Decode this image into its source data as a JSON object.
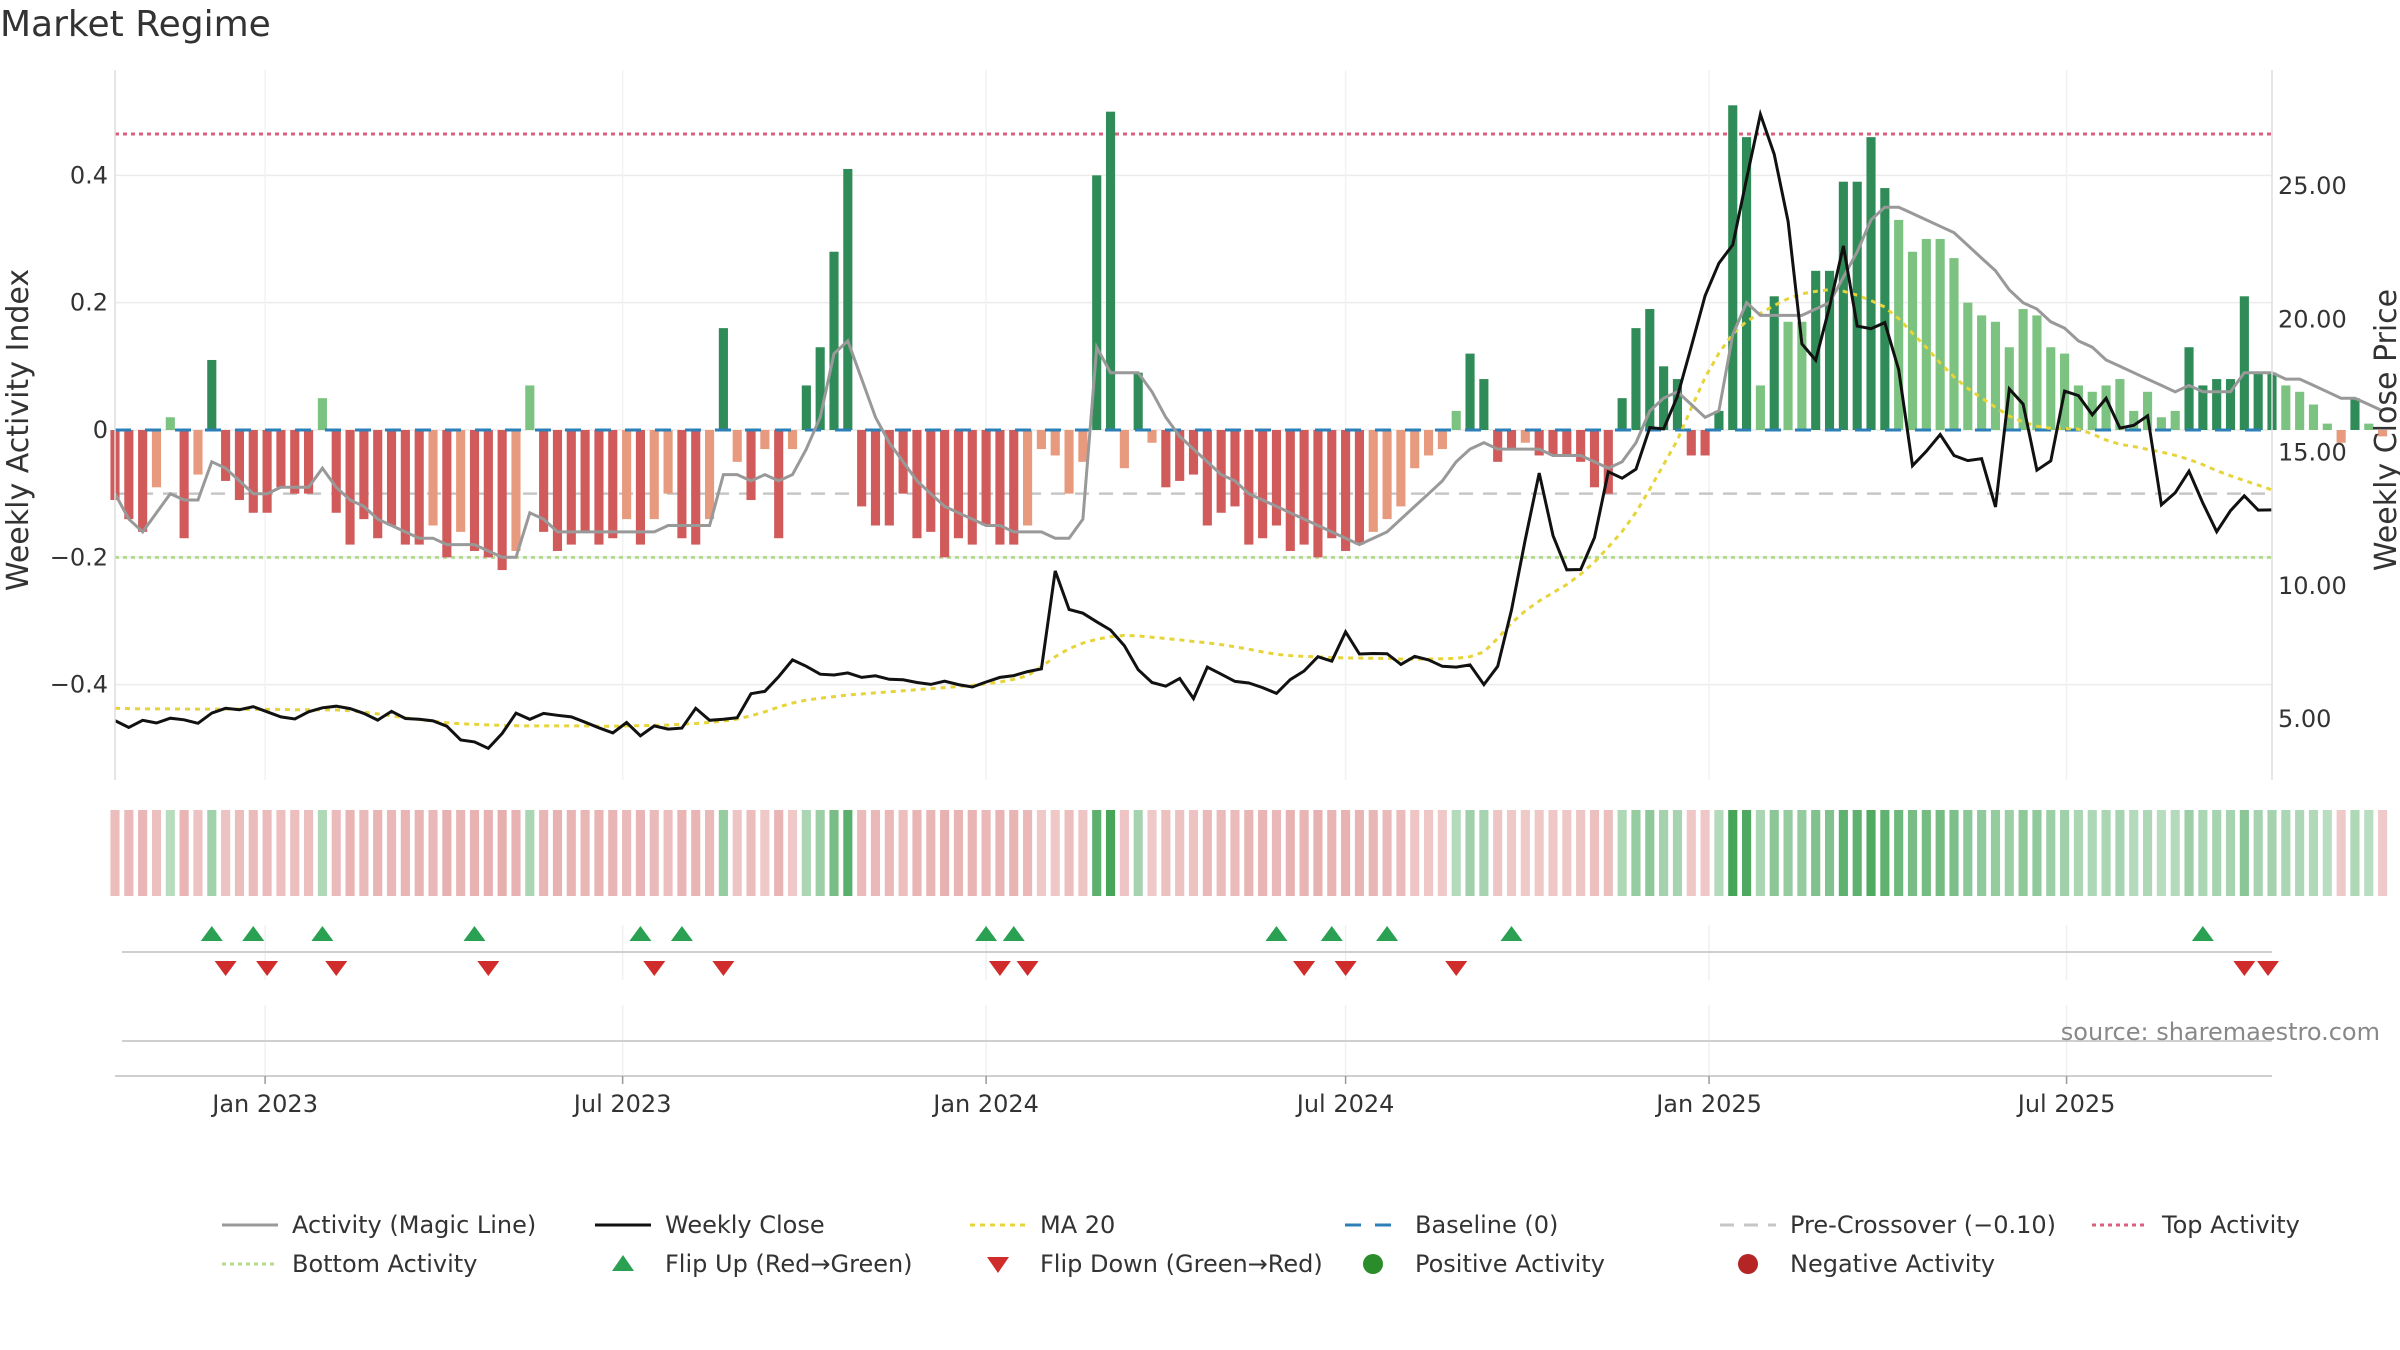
{
  "title": "Market Regime",
  "source": "source: sharemaestro.com",
  "colors": {
    "magic_line": "#999999",
    "close": "#111111",
    "ma20": "#e6d43a",
    "baseline": "#2d7fb8",
    "precross": "#c6c6c6",
    "top": "#d9617d",
    "bottom": "#b4db8e",
    "flip_up": "#2aa052",
    "flip_down": "#d12c2c",
    "pos_dot": "#2a8c2a",
    "neg_dot": "#b52525",
    "bar_strong_pos": "#2f8b57",
    "bar_weak_pos": "#7cc382",
    "bar_strong_neg": "#d15b5b",
    "bar_weak_neg": "#e89a7e"
  },
  "chart_data": {
    "type": "bar",
    "title": "Market Regime",
    "ylabel_left": "Weekly Activity Index",
    "ylabel_right": "Weekly Close Price",
    "ylim_left": [
      -0.5,
      0.55
    ],
    "ylim_right": [
      2.0,
      29.2
    ],
    "y_ticks_left": [
      0.4,
      0.2,
      0,
      -0.2,
      -0.4
    ],
    "y_tick_labels_left": [
      "0.4",
      "0.2",
      "0",
      "−0.2",
      "−0.4"
    ],
    "y_ticks_right": [
      25,
      20,
      15,
      10,
      5
    ],
    "y_tick_labels_right": [
      "25.00",
      "20.00",
      "15.00",
      "10.00",
      "5.00"
    ],
    "x_ticks": [
      "2023-01-01",
      "2023-07-01",
      "2024-01-01",
      "2024-07-01",
      "2025-01-01",
      "2025-07-01"
    ],
    "x_tick_labels": [
      "Jan 2023",
      "Jul 2023",
      "Jan 2024",
      "Jul 2024",
      "Jan 2025",
      "Jul 2025"
    ],
    "x_range": [
      "2022-10-17",
      "2025-10-13"
    ],
    "first_week": "2022-10-17",
    "week_interval_days": 7,
    "reference_lines": {
      "baseline": 0,
      "pre_crossover": -0.1,
      "top_activity": 0.465,
      "bottom_activity": -0.2
    },
    "activity": [
      -0.11,
      -0.14,
      -0.16,
      -0.09,
      0.02,
      -0.17,
      -0.07,
      0.11,
      -0.08,
      -0.11,
      -0.13,
      -0.13,
      -0.09,
      -0.1,
      -0.1,
      0.05,
      -0.13,
      -0.18,
      -0.14,
      -0.17,
      -0.15,
      -0.18,
      -0.18,
      -0.15,
      -0.2,
      -0.16,
      -0.19,
      -0.2,
      -0.22,
      -0.19,
      0.07,
      -0.16,
      -0.19,
      -0.18,
      -0.16,
      -0.18,
      -0.17,
      -0.14,
      -0.18,
      -0.14,
      -0.1,
      -0.17,
      -0.18,
      -0.14,
      0.16,
      -0.05,
      -0.11,
      -0.03,
      -0.17,
      -0.03,
      0.07,
      0.13,
      0.28,
      0.41,
      -0.12,
      -0.15,
      -0.15,
      -0.1,
      -0.17,
      -0.16,
      -0.2,
      -0.17,
      -0.18,
      -0.15,
      -0.18,
      -0.18,
      -0.15,
      -0.03,
      -0.04,
      -0.1,
      -0.05,
      0.4,
      0.5,
      -0.06,
      0.09,
      -0.02,
      -0.09,
      -0.08,
      -0.07,
      -0.15,
      -0.13,
      -0.12,
      -0.18,
      -0.17,
      -0.15,
      -0.19,
      -0.18,
      -0.2,
      -0.17,
      -0.19,
      -0.18,
      -0.16,
      -0.14,
      -0.12,
      -0.06,
      -0.04,
      -0.03,
      0.03,
      0.12,
      0.08,
      -0.05,
      -0.03,
      -0.02,
      -0.04,
      -0.04,
      -0.04,
      -0.05,
      -0.09,
      -0.1,
      0.05,
      0.16,
      0.19,
      0.1,
      0.08,
      -0.04,
      -0.04,
      0.03,
      0.51,
      0.46,
      0.07,
      0.21,
      0.17,
      0.17,
      0.25,
      0.25,
      0.39,
      0.39,
      0.46,
      0.38,
      0.33,
      0.28,
      0.3,
      0.3,
      0.27,
      0.2,
      0.18,
      0.17,
      0.13,
      0.19,
      0.18,
      0.13,
      0.12,
      0.07,
      0.06,
      0.07,
      0.08,
      0.03,
      0.06,
      0.02,
      0.03,
      0.13,
      0.07,
      0.08,
      0.08,
      0.21,
      0.09,
      0.09,
      0.07,
      0.06,
      0.04,
      0.01,
      -0.02,
      0.05,
      0.01,
      -0.01
    ],
    "magic_line": [
      -0.1,
      -0.14,
      -0.16,
      -0.13,
      -0.1,
      -0.11,
      -0.11,
      -0.05,
      -0.06,
      -0.08,
      -0.1,
      -0.1,
      -0.09,
      -0.09,
      -0.09,
      -0.06,
      -0.09,
      -0.11,
      -0.12,
      -0.14,
      -0.15,
      -0.16,
      -0.17,
      -0.17,
      -0.18,
      -0.18,
      -0.18,
      -0.19,
      -0.2,
      -0.2,
      -0.13,
      -0.14,
      -0.16,
      -0.16,
      -0.16,
      -0.16,
      -0.16,
      -0.16,
      -0.16,
      -0.16,
      -0.15,
      -0.15,
      -0.15,
      -0.15,
      -0.07,
      -0.07,
      -0.08,
      -0.07,
      -0.08,
      -0.07,
      -0.03,
      0.02,
      0.12,
      0.14,
      0.08,
      0.02,
      -0.02,
      -0.05,
      -0.08,
      -0.1,
      -0.12,
      -0.13,
      -0.14,
      -0.15,
      -0.15,
      -0.16,
      -0.16,
      -0.16,
      -0.17,
      -0.17,
      -0.14,
      0.13,
      0.09,
      0.09,
      0.09,
      0.06,
      0.02,
      -0.01,
      -0.03,
      -0.05,
      -0.07,
      -0.08,
      -0.1,
      -0.11,
      -0.12,
      -0.13,
      -0.14,
      -0.15,
      -0.16,
      -0.17,
      -0.18,
      -0.17,
      -0.16,
      -0.14,
      -0.12,
      -0.1,
      -0.08,
      -0.05,
      -0.03,
      -0.02,
      -0.03,
      -0.03,
      -0.03,
      -0.03,
      -0.04,
      -0.04,
      -0.04,
      -0.05,
      -0.06,
      -0.05,
      -0.02,
      0.03,
      0.05,
      0.06,
      0.04,
      0.02,
      0.03,
      0.15,
      0.2,
      0.18,
      0.18,
      0.18,
      0.18,
      0.19,
      0.2,
      0.24,
      0.28,
      0.33,
      0.35,
      0.35,
      0.34,
      0.33,
      0.32,
      0.31,
      0.29,
      0.27,
      0.25,
      0.22,
      0.2,
      0.19,
      0.17,
      0.16,
      0.14,
      0.13,
      0.11,
      0.1,
      0.09,
      0.08,
      0.07,
      0.06,
      0.07,
      0.06,
      0.06,
      0.06,
      0.09,
      0.09,
      0.09,
      0.08,
      0.08,
      0.07,
      0.06,
      0.05,
      0.05,
      0.04,
      0.03
    ],
    "weekly_close": [
      4.94,
      4.68,
      4.95,
      4.85,
      5.03,
      4.97,
      4.84,
      5.22,
      5.4,
      5.35,
      5.46,
      5.27,
      5.08,
      5.0,
      5.27,
      5.42,
      5.48,
      5.39,
      5.21,
      4.96,
      5.29,
      5.02,
      4.99,
      4.93,
      4.73,
      4.21,
      4.14,
      3.9,
      4.46,
      5.22,
      4.99,
      5.21,
      5.14,
      5.08,
      4.88,
      4.67,
      4.48,
      4.87,
      4.37,
      4.74,
      4.62,
      4.66,
      5.4,
      4.95,
      4.99,
      5.05,
      5.95,
      6.04,
      6.59,
      7.22,
      6.98,
      6.68,
      6.65,
      6.73,
      6.56,
      6.62,
      6.49,
      6.47,
      6.37,
      6.3,
      6.42,
      6.29,
      6.2,
      6.39,
      6.56,
      6.63,
      6.78,
      6.88,
      10.56,
      9.11,
      8.97,
      8.65,
      8.34,
      7.75,
      6.85,
      6.37,
      6.23,
      6.52,
      5.77,
      6.95,
      6.68,
      6.41,
      6.35,
      6.18,
      5.96,
      6.48,
      6.8,
      7.34,
      7.17,
      8.27,
      7.44,
      7.46,
      7.45,
      7.05,
      7.35,
      7.22,
      6.98,
      6.95,
      7.03,
      6.29,
      6.98,
      9.09,
      11.74,
      14.23,
      11.89,
      10.6,
      10.61,
      11.81,
      14.28,
      14.04,
      14.38,
      15.94,
      15.89,
      17.11,
      18.98,
      20.89,
      22.11,
      22.8,
      25.28,
      27.7,
      26.2,
      23.68,
      19.08,
      18.47,
      20.47,
      22.76,
      19.75,
      19.65,
      19.88,
      18.11,
      14.51,
      15.05,
      15.68,
      14.89,
      14.7,
      14.77,
      12.96,
      17.39,
      16.82,
      14.34,
      14.69,
      17.31,
      17.14,
      16.42,
      17.04,
      15.92,
      16.02,
      16.38,
      13.04,
      13.49,
      14.3,
      13.1,
      12.03,
      12.82,
      13.38,
      12.84,
      12.85
    ],
    "ma20": [
      5.4,
      5.39,
      5.38,
      5.38,
      5.38,
      5.37,
      5.37,
      5.37,
      5.37,
      5.37,
      5.36,
      5.36,
      5.36,
      5.35,
      5.35,
      5.34,
      5.34,
      5.31,
      5.26,
      5.19,
      5.12,
      5.04,
      4.98,
      4.92,
      4.86,
      4.82,
      4.8,
      4.78,
      4.76,
      4.75,
      4.74,
      4.74,
      4.74,
      4.74,
      4.74,
      4.73,
      4.73,
      4.74,
      4.75,
      4.76,
      4.77,
      4.8,
      4.83,
      4.87,
      4.92,
      5.0,
      5.12,
      5.27,
      5.45,
      5.6,
      5.71,
      5.78,
      5.84,
      5.9,
      5.94,
      5.98,
      6.02,
      6.06,
      6.1,
      6.14,
      6.18,
      6.22,
      6.26,
      6.32,
      6.39,
      6.49,
      6.63,
      6.96,
      7.34,
      7.64,
      7.85,
      7.99,
      8.09,
      8.14,
      8.12,
      8.07,
      8.02,
      7.97,
      7.91,
      7.86,
      7.79,
      7.71,
      7.62,
      7.52,
      7.43,
      7.38,
      7.35,
      7.33,
      7.31,
      7.29,
      7.29,
      7.28,
      7.27,
      7.25,
      7.25,
      7.25,
      7.26,
      7.28,
      7.34,
      7.52,
      8.03,
      8.6,
      9.06,
      9.43,
      9.74,
      10.05,
      10.44,
      10.89,
      11.45,
      12.04,
      12.76,
      13.63,
      14.55,
      15.47,
      16.67,
      17.82,
      18.73,
      19.46,
      19.93,
      20.23,
      20.52,
      20.78,
      20.96,
      21.05,
      21.12,
      21.06,
      20.91,
      20.71,
      20.46,
      20.03,
      19.48,
      18.95,
      18.36,
      17.84,
      17.41,
      17.05,
      16.7,
      16.37,
      16.15,
      15.99,
      15.91,
      15.9,
      15.88,
      15.7,
      15.47,
      15.31,
      15.23,
      15.12,
      15.02,
      14.9,
      14.74,
      14.55,
      14.32,
      14.13,
      13.95,
      13.78,
      13.6
    ],
    "flip_up": [
      "2022-12-05",
      "2022-12-26",
      "2023-01-30",
      "2023-04-17",
      "2023-07-10",
      "2023-07-31",
      "2024-01-01",
      "2024-01-15",
      "2024-05-27",
      "2024-06-24",
      "2024-07-22",
      "2024-09-23",
      "2025-09-08"
    ],
    "flip_down": [
      "2022-12-12",
      "2023-01-02",
      "2023-02-06",
      "2023-04-24",
      "2023-07-17",
      "2023-08-21",
      "2024-01-08",
      "2024-01-22",
      "2024-06-10",
      "2024-07-01",
      "2024-08-26",
      "2025-09-29",
      "2025-10-13"
    ]
  },
  "legend": [
    {
      "label": "Activity (Magic Line)",
      "kind": "line-gray"
    },
    {
      "label": "Weekly Close",
      "kind": "line-black"
    },
    {
      "label": "MA 20",
      "kind": "line-ma"
    },
    {
      "label": "Baseline (0)",
      "kind": "line-baseline"
    },
    {
      "label": "Pre-Crossover (−0.10)",
      "kind": "line-precross"
    },
    {
      "label": "Top Activity",
      "kind": "line-top"
    },
    {
      "label": "Bottom Activity",
      "kind": "line-bottom"
    },
    {
      "label": "Flip Up (Red→Green)",
      "kind": "triangle-up"
    },
    {
      "label": "Flip Down (Green→Red)",
      "kind": "triangle-down"
    },
    {
      "label": "Positive Activity",
      "kind": "dot-pos"
    },
    {
      "label": "Negative Activity",
      "kind": "dot-neg"
    }
  ]
}
